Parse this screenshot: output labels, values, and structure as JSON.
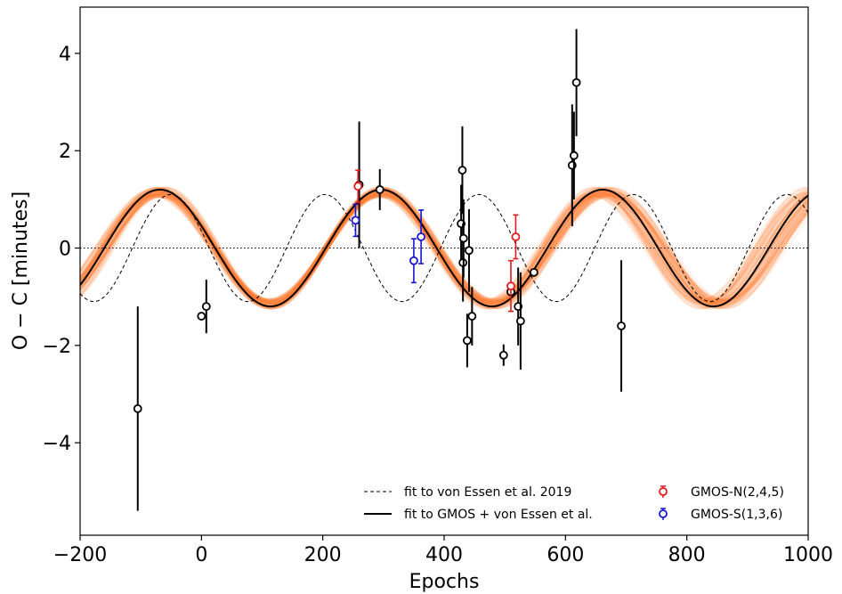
{
  "chart_data": {
    "type": "scatter",
    "xlabel": "Epochs",
    "ylabel": "O − C [minutes]",
    "xlim": [
      -200,
      1000
    ],
    "ylim": [
      -5.9,
      4.95
    ],
    "xticks": [
      -200,
      0,
      200,
      400,
      600,
      800,
      1000
    ],
    "xtick_labels": [
      "−200",
      "0",
      "200",
      "400",
      "600",
      "800",
      "1000"
    ],
    "yticks": [
      -4,
      -2,
      0,
      2,
      4
    ],
    "ytick_labels": [
      "−4",
      "−2",
      "0",
      "2",
      "4"
    ],
    "grid": false,
    "legend_position": "lower-right",
    "colors": {
      "posterior": "#ff7f2a",
      "gmos_fit": "#000000",
      "von_essen_fit": "#000000",
      "von_essen_points": "#000000",
      "gmos_n": "#e31a1c",
      "gmos_s": "#1515d0"
    },
    "models": [
      {
        "name": "fit to von Essen et al. 2019",
        "style": "dashed",
        "amplitude": 1.1,
        "period": 254,
        "phase_epoch": 140
      },
      {
        "name": "fit to GMOS + von Essen et al.",
        "style": "solid",
        "amplitude": 1.2,
        "period": 365,
        "phase_epoch": 205,
        "posterior_band": {
          "amplitude_range": [
            1.05,
            1.25
          ],
          "period_range": [
            352,
            378
          ]
        }
      }
    ],
    "series": [
      {
        "name": "GMOS-N(2,4,5)",
        "marker": "open-circle",
        "points": [
          {
            "x": 258,
            "y": 1.27,
            "err": 0.33
          },
          {
            "x": 510,
            "y": -0.78,
            "err": 0.52
          },
          {
            "x": 518,
            "y": 0.23,
            "err": 0.45
          }
        ]
      },
      {
        "name": "GMOS-S(1,3,6)",
        "marker": "open-circle",
        "points": [
          {
            "x": 254,
            "y": 0.57,
            "err": 0.33
          },
          {
            "x": 350,
            "y": -0.26,
            "err": 0.45
          },
          {
            "x": 362,
            "y": 0.23,
            "err": 0.55
          }
        ]
      },
      {
        "marker": "open-circle",
        "points": [
          {
            "x": -105,
            "y": -3.3,
            "err": 2.1
          },
          {
            "x": 0,
            "y": -1.4,
            "err": 0.0
          },
          {
            "x": 8,
            "y": -1.2,
            "err": 0.55
          },
          {
            "x": 260,
            "y": 1.3,
            "err": 1.3
          },
          {
            "x": 294,
            "y": 1.2,
            "err": 0.42
          },
          {
            "x": 428,
            "y": 0.5,
            "err": 0.8
          },
          {
            "x": 430,
            "y": 1.6,
            "err": 0.9
          },
          {
            "x": 431,
            "y": -0.3,
            "err": 0.8
          },
          {
            "x": 432,
            "y": 0.2,
            "err": 0.8
          },
          {
            "x": 438,
            "y": -1.9,
            "err": 0.55
          },
          {
            "x": 441,
            "y": -0.05,
            "err": 0.85
          },
          {
            "x": 446,
            "y": -1.4,
            "err": 0.6
          },
          {
            "x": 498,
            "y": -2.2,
            "err": 0.22
          },
          {
            "x": 510,
            "y": -0.9,
            "err": 0.0
          },
          {
            "x": 522,
            "y": -1.2,
            "err": 0.8
          },
          {
            "x": 526,
            "y": -1.5,
            "err": 1.0
          },
          {
            "x": 548,
            "y": -0.5,
            "err": 0.0
          },
          {
            "x": 611,
            "y": 1.7,
            "err": 1.25
          },
          {
            "x": 614,
            "y": 1.9,
            "err": 0.9
          },
          {
            "x": 618,
            "y": 3.4,
            "err": 1.1
          },
          {
            "x": 692,
            "y": -1.6,
            "err": 1.35
          }
        ]
      }
    ]
  }
}
